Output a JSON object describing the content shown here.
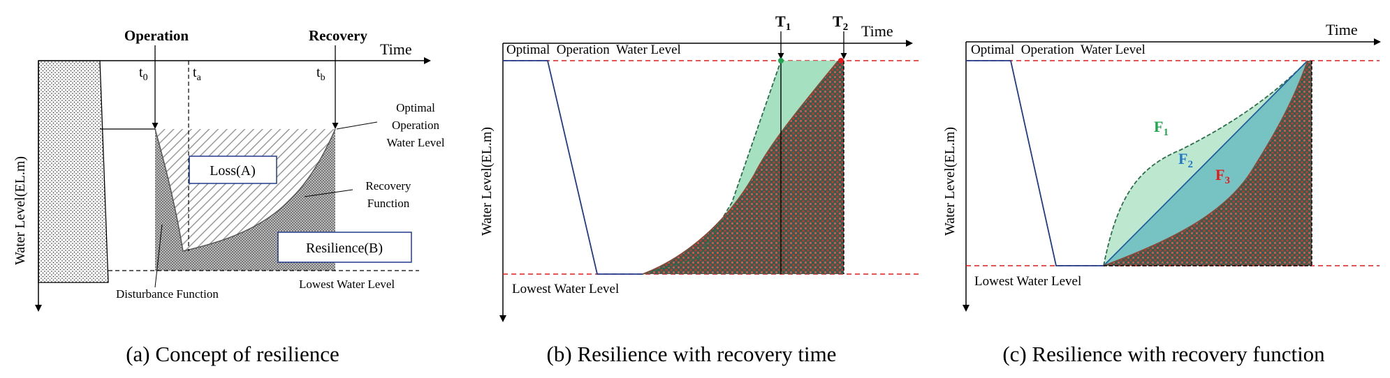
{
  "panel_a": {
    "caption": "(a) Concept of resilience",
    "header_operation": "Operation",
    "header_recovery": "Recovery",
    "axis_time": "Time",
    "axis_y": "Water Level(EL.m)",
    "t0_base": "t",
    "t0_sub": "0",
    "ta_base": "t",
    "ta_sub": "a",
    "tb_base": "t",
    "tb_sub": "b",
    "optimal_line1": "Optimal",
    "optimal_line2": "Operation",
    "optimal_line3": "Water Level",
    "box_loss": "Loss(A)",
    "box_resilience": "Resilience(B)",
    "recovery_fn_line1": "Recovery",
    "recovery_fn_line2": "Function",
    "disturbance_fn": "Disturbance Function",
    "lowest_level": "Lowest Water Level"
  },
  "panel_b": {
    "caption": "(b) Resilience with recovery time",
    "axis_time": "Time",
    "axis_y": "Water Level(EL.m)",
    "optimal_level": "Optimal  Operation  Water Level",
    "lowest_level": "Lowest Water Level",
    "T1_base": "T",
    "T1_sub": "1",
    "T2_base": "T",
    "T2_sub": "2"
  },
  "panel_c": {
    "caption": "(c) Resilience with recovery function",
    "axis_time": "Time",
    "axis_y": "Water Level(EL.m)",
    "optimal_level": "Optimal  Operation  Water Level",
    "lowest_level": "Lowest Water Level",
    "F1_base": "F",
    "F1_sub": "1",
    "F2_base": "F",
    "F2_sub": "2",
    "F3_base": "F",
    "F3_sub": "3"
  },
  "colors": {
    "axis_blue": "#1f3a8a",
    "threshold_red": "#e31a1c",
    "green_fill": "#8fd9b0",
    "teal_fill": "#5fb8b8",
    "f1_green": "#22a550",
    "f2_blue": "#1f78c8",
    "f3_red": "#e31a1c"
  }
}
